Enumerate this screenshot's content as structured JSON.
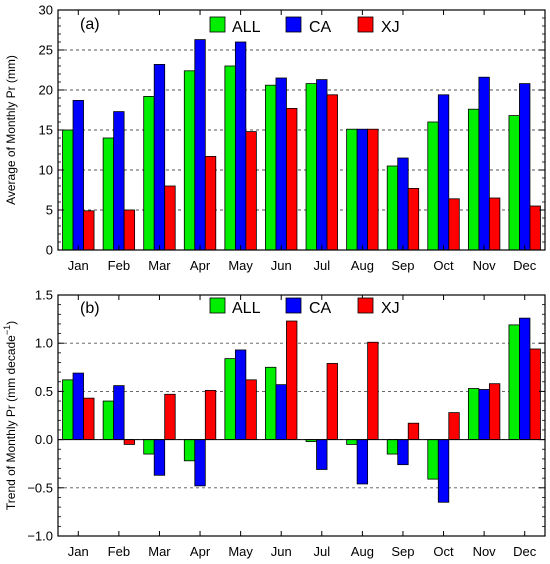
{
  "chart_data": [
    {
      "type": "bar",
      "panel_label": "(a)",
      "ylabel": "Average of Monthly Pr  (mm)",
      "ylim": [
        0,
        30
      ],
      "yticks": [
        0,
        5,
        10,
        15,
        20,
        25,
        30
      ],
      "ytick_labels": [
        "0",
        "5",
        "10",
        "15",
        "20",
        "25",
        "30"
      ],
      "categories": [
        "Jan",
        "Feb",
        "Mar",
        "Apr",
        "May",
        "Jun",
        "Jul",
        "Aug",
        "Sep",
        "Oct",
        "Nov",
        "Dec"
      ],
      "grid": "horizontal-dashed",
      "legend": "top-center",
      "series": [
        {
          "name": "ALL",
          "color": "#00ee00",
          "values": [
            15.0,
            14.0,
            19.2,
            22.4,
            23.0,
            20.6,
            20.8,
            15.1,
            10.5,
            16.0,
            17.6,
            16.8
          ]
        },
        {
          "name": "CA",
          "color": "#0000ff",
          "values": [
            18.7,
            17.3,
            23.2,
            26.3,
            26.0,
            21.5,
            21.3,
            15.1,
            11.5,
            19.4,
            21.6,
            20.8
          ]
        },
        {
          "name": "XJ",
          "color": "#ff0000",
          "values": [
            4.9,
            5.0,
            8.0,
            11.7,
            14.8,
            17.7,
            19.4,
            15.1,
            7.7,
            6.4,
            6.5,
            5.5
          ]
        }
      ]
    },
    {
      "type": "bar",
      "panel_label": "(b)",
      "ylabel": "Trend of Monthly Pr  (mm decade",
      "ylabel_superscript": "−1",
      "ylabel_close": ")",
      "ylim": [
        -1.0,
        1.5
      ],
      "yticks": [
        -1.0,
        -0.5,
        0.0,
        0.5,
        1.0,
        1.5
      ],
      "ytick_labels": [
        "−1.0",
        "−0.5",
        "0.0",
        "0.5",
        "1.0",
        "1.5"
      ],
      "categories": [
        "Jan",
        "Feb",
        "Mar",
        "Apr",
        "May",
        "Jun",
        "Jul",
        "Aug",
        "Sep",
        "Oct",
        "Nov",
        "Dec"
      ],
      "grid": "horizontal-dashed",
      "legend": "top-center",
      "series": [
        {
          "name": "ALL",
          "color": "#00ee00",
          "values": [
            0.62,
            0.4,
            -0.15,
            -0.22,
            0.84,
            0.75,
            -0.02,
            -0.05,
            -0.15,
            -0.41,
            0.53,
            1.19
          ]
        },
        {
          "name": "CA",
          "color": "#0000ff",
          "values": [
            0.69,
            0.56,
            -0.37,
            -0.48,
            0.93,
            0.57,
            -0.31,
            -0.46,
            -0.26,
            -0.65,
            0.52,
            1.26
          ]
        },
        {
          "name": "XJ",
          "color": "#ff0000",
          "values": [
            0.43,
            -0.05,
            0.47,
            0.51,
            0.62,
            1.23,
            0.79,
            1.01,
            0.17,
            0.28,
            0.58,
            0.94
          ]
        }
      ]
    }
  ]
}
